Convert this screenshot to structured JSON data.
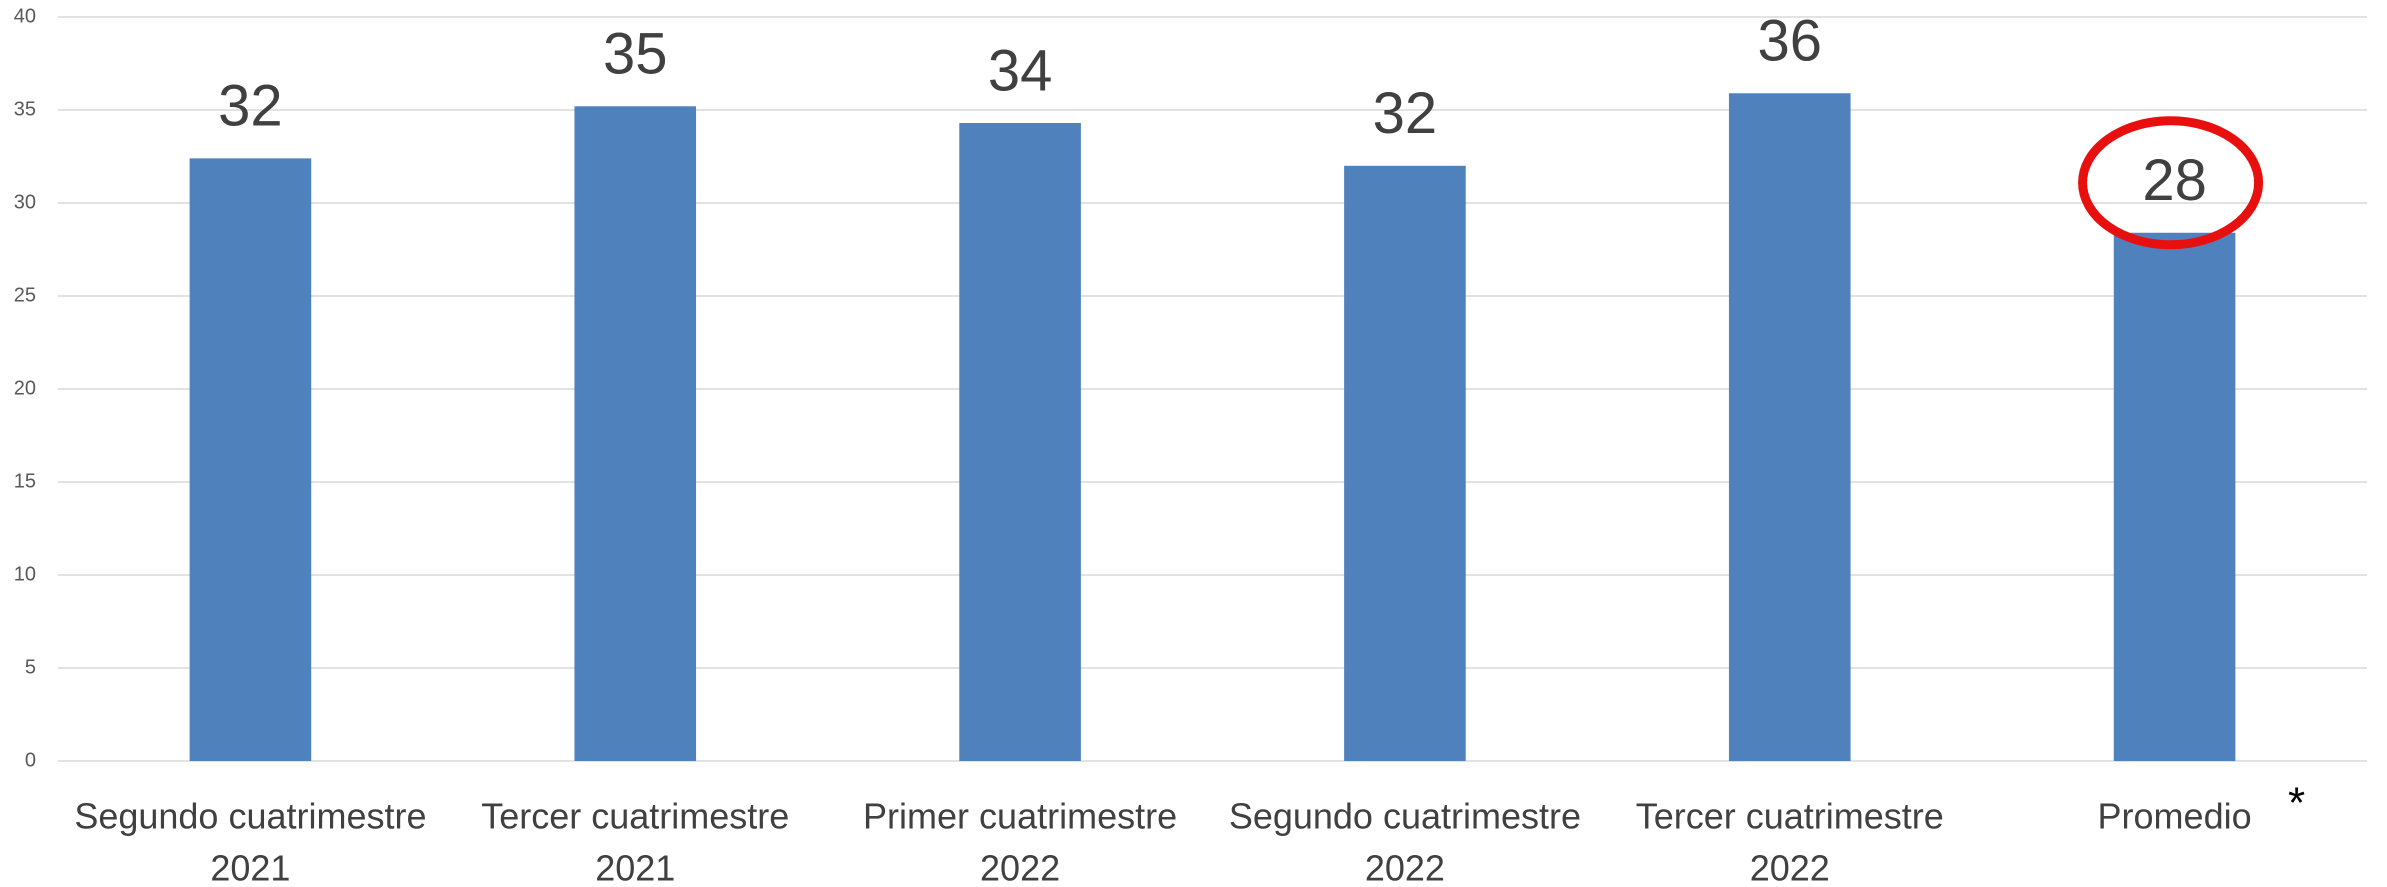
{
  "chart_data": {
    "type": "bar",
    "categories": [
      [
        "Segundo cuatrimestre",
        "2021"
      ],
      [
        "Tercer cuatrimestre",
        "2021"
      ],
      [
        "Primer cuatrimestre",
        "2022"
      ],
      [
        "Segundo cuatrimestre",
        "2022"
      ],
      [
        "Tercer cuatrimestre",
        "2022"
      ],
      [
        "Promedio"
      ]
    ],
    "values": [
      32.4,
      35.2,
      34.3,
      32.0,
      35.9,
      28.4
    ],
    "value_labels": [
      "32",
      "35",
      "34",
      "32",
      "36",
      "28"
    ],
    "color": "#4f81bd",
    "ylim": [
      0,
      40
    ],
    "yticks": [
      0,
      5,
      10,
      15,
      20,
      25,
      30,
      35,
      40
    ],
    "grid": true,
    "annotation": "*",
    "highlight_color": "#e8100f"
  }
}
